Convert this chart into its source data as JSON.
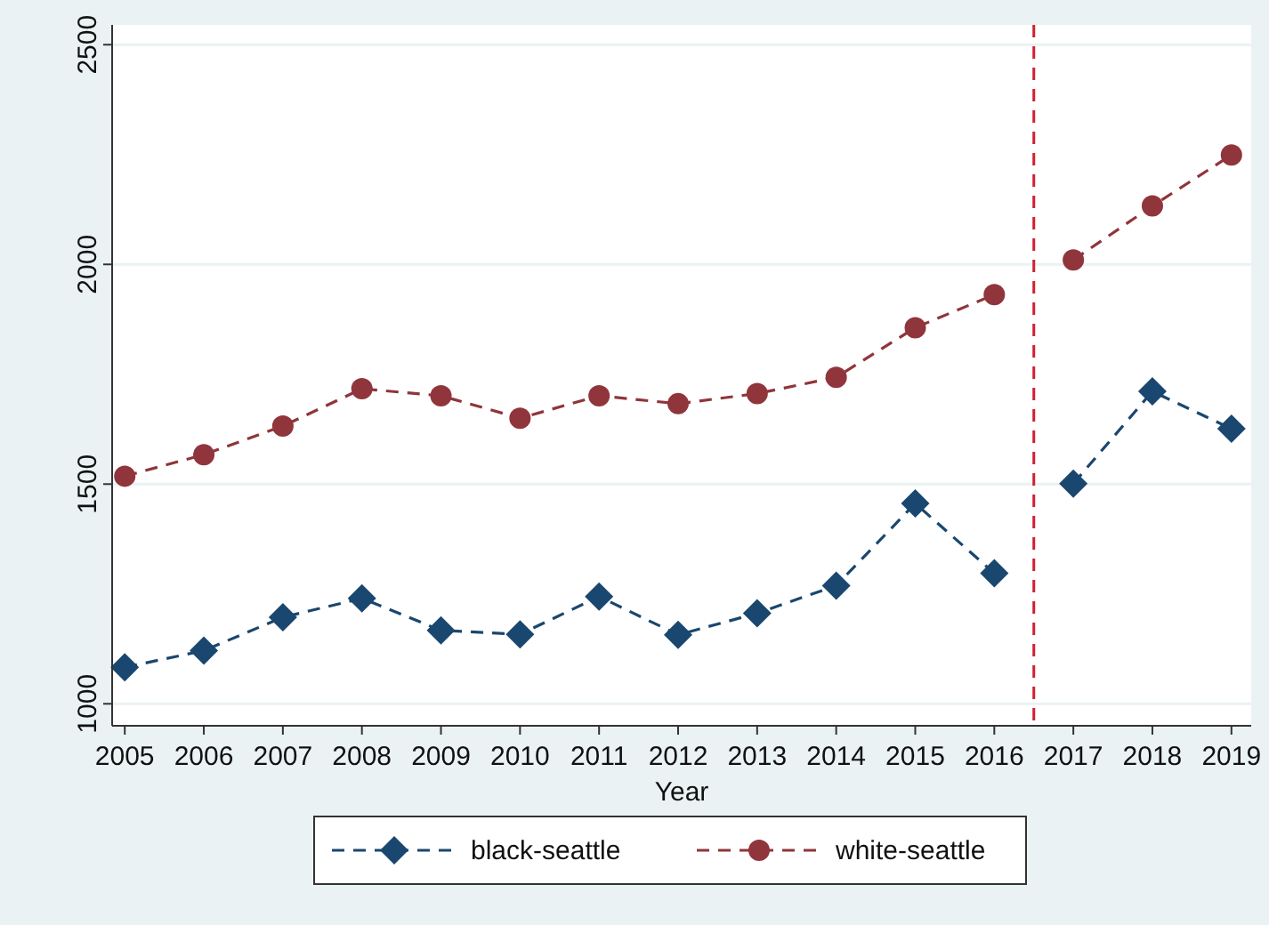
{
  "chart_data": {
    "type": "line",
    "xlabel": "Year",
    "x": [
      2005,
      2006,
      2007,
      2008,
      2009,
      2010,
      2011,
      2012,
      2013,
      2014,
      2015,
      2016,
      2017,
      2018,
      2019
    ],
    "series": [
      {
        "name": "black-seattle",
        "color": "#1a476f",
        "marker": "diamond",
        "values": [
          1083,
          1121,
          1197,
          1240,
          1167,
          1158,
          1244,
          1157,
          1206,
          1269,
          1456,
          1297,
          1501,
          1711,
          1626
        ]
      },
      {
        "name": "white-seattle",
        "color": "#90353b",
        "marker": "circle",
        "values": [
          1518,
          1567,
          1632,
          1717,
          1701,
          1650,
          1701,
          1683,
          1706,
          1743,
          1856,
          1931,
          2010,
          2133,
          2249
        ]
      }
    ],
    "xlim": [
      2004.84,
      2019.25
    ],
    "xticks": [
      2005,
      2006,
      2007,
      2008,
      2009,
      2010,
      2011,
      2012,
      2013,
      2014,
      2015,
      2016,
      2017,
      2018,
      2019
    ],
    "ylim": [
      950,
      2545
    ],
    "yticks": [
      1000,
      1500,
      2000,
      2500
    ],
    "grid": "y",
    "line_style": "dashed",
    "legend": "bottom",
    "ref_lines": [
      {
        "axis": "x",
        "value": 2016.5,
        "color": "#d0202e",
        "line_style": "dashed"
      }
    ]
  }
}
